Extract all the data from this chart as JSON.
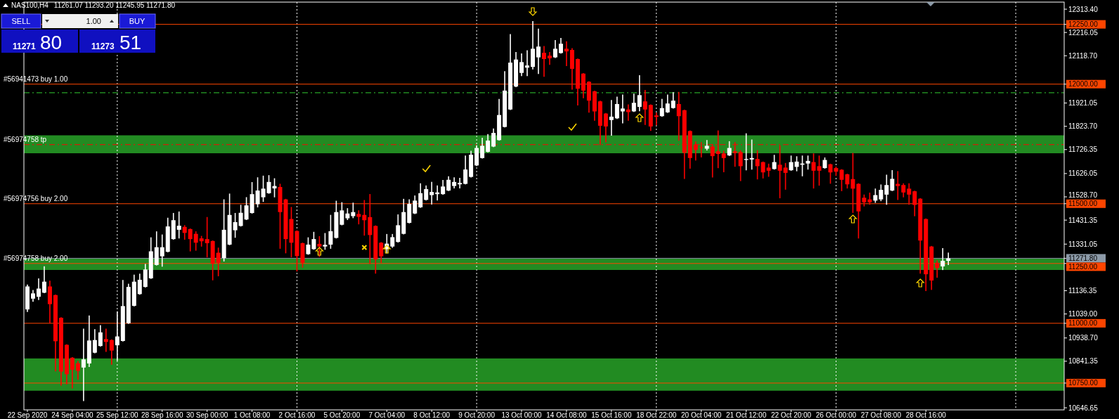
{
  "chart_data": {
    "type": "candlestick",
    "title": "NAS100,H4",
    "annotations": [
      "SELL",
      "1.00",
      "BUY",
      "11271",
      "80",
      "11273",
      "51",
      "11261.07 11293.20 11245.95 11271.80"
    ],
    "categories": [
      "22 Sep 2020",
      null,
      null,
      null,
      null,
      null,
      null,
      null,
      "24 Sep 04:00",
      null,
      null,
      null,
      null,
      null,
      null,
      null,
      "25 Sep 12:00",
      null,
      null,
      null,
      null,
      null,
      null,
      null,
      "28 Sep 16:00",
      null,
      null,
      null,
      null,
      null,
      null,
      null,
      "30 Sep 00:00",
      null,
      null,
      null,
      null,
      null,
      null,
      null,
      "1 Oct 08:00",
      null,
      null,
      null,
      null,
      null,
      null,
      null,
      "2 Oct 16:00",
      null,
      null,
      null,
      null,
      null,
      null,
      null,
      "5 Oct 20:00",
      null,
      null,
      null,
      null,
      null,
      null,
      null,
      "7 Oct 04:00",
      null,
      null,
      null,
      null,
      null,
      null,
      null,
      "8 Oct 12:00",
      null,
      null,
      null,
      null,
      null,
      null,
      null,
      "9 Oct 20:00",
      null,
      null,
      null,
      null,
      null,
      null,
      null,
      "13 Oct 00:00",
      null,
      null,
      null,
      null,
      null,
      null,
      null,
      "14 Oct 08:00",
      null,
      null,
      null,
      null,
      null,
      null,
      null,
      "15 Oct 16:00",
      null,
      null,
      null,
      null,
      null,
      null,
      null,
      "18 Oct 22:00",
      null,
      null,
      null,
      null,
      null,
      null,
      null,
      "20 Oct 04:00",
      null,
      null,
      null,
      null,
      null,
      null,
      null,
      "21 Oct 12:00",
      null,
      null,
      null,
      null,
      null,
      null,
      null,
      "22 Oct 20:00",
      null,
      null,
      null,
      null,
      null,
      null,
      null,
      "26 Oct 00:00",
      null,
      null,
      null,
      null,
      null,
      null,
      null,
      "27 Oct 08:00",
      null,
      null,
      null,
      null,
      null,
      null,
      null,
      "28 Oct 16:00",
      null,
      null,
      null,
      null,
      null,
      null,
      null,
      null,
      null,
      null,
      null,
      null,
      null,
      null,
      null,
      null,
      null,
      null,
      null,
      null,
      null,
      null,
      null,
      null
    ],
    "ohlc": [
      [
        11058,
        11160,
        11050,
        11154
      ],
      [
        11103,
        11137,
        11092,
        11125
      ],
      [
        11111,
        11185,
        11100,
        11145
      ],
      [
        11128,
        11236,
        11128,
        11174
      ],
      [
        11154,
        11176,
        11001,
        11080
      ],
      [
        11118,
        11118,
        10801,
        10925
      ],
      [
        11023,
        11023,
        10742,
        10798
      ],
      [
        10910,
        10910,
        10747,
        10787
      ],
      [
        10856,
        10856,
        10730,
        10806
      ],
      [
        10833,
        10840,
        10767,
        10801
      ],
      [
        10815,
        10975,
        10677,
        10849
      ],
      [
        10832,
        11030,
        10820,
        10928
      ],
      [
        10877,
        10973,
        10877,
        10930
      ],
      [
        10905,
        10990,
        10905,
        10962
      ],
      [
        10934,
        10975,
        10883,
        10922
      ],
      [
        10930,
        10930,
        10829,
        10886
      ],
      [
        10908,
        11047,
        10846,
        10945
      ],
      [
        10926,
        11179,
        10926,
        11072
      ],
      [
        11000,
        11163,
        11000,
        11152
      ],
      [
        11073,
        11201,
        11073,
        11174
      ],
      [
        11122,
        11205,
        11122,
        11182
      ],
      [
        11152,
        11246,
        11152,
        11225
      ],
      [
        11188,
        11357,
        11188,
        11301
      ],
      [
        11244,
        11382,
        11244,
        11318
      ],
      [
        11280,
        11369,
        11239,
        11318
      ],
      [
        11299,
        11439,
        11299,
        11405
      ],
      [
        11352,
        11459,
        11352,
        11431
      ],
      [
        11391,
        11465,
        11357,
        11408
      ],
      [
        11403,
        11408,
        11352,
        11378
      ],
      [
        11394,
        11394,
        11303,
        11352
      ],
      [
        11374,
        11382,
        11306,
        11337
      ],
      [
        11355,
        11363,
        11323,
        11343
      ],
      [
        11352,
        11442,
        11278,
        11335
      ],
      [
        11344,
        11344,
        11182,
        11250
      ],
      [
        11295,
        11314,
        11199,
        11253
      ],
      [
        11273,
        11516,
        11261,
        11391
      ],
      [
        11329,
        11540,
        11329,
        11453
      ],
      [
        11389,
        11459,
        11360,
        11423
      ],
      [
        11407,
        11493,
        11407,
        11462
      ],
      [
        11434,
        11525,
        11434,
        11493
      ],
      [
        11461,
        11588,
        11461,
        11540
      ],
      [
        11498,
        11608,
        11487,
        11555
      ],
      [
        11527,
        11615,
        11510,
        11563
      ],
      [
        11544,
        11617,
        11544,
        11591
      ],
      [
        11564,
        11604,
        11529,
        11574
      ],
      [
        11570,
        11581,
        11314,
        11465
      ],
      [
        11518,
        11518,
        11295,
        11352
      ],
      [
        11436,
        11484,
        11278,
        11337
      ],
      [
        11386,
        11386,
        11219,
        11281
      ],
      [
        11335,
        11335,
        11235,
        11253
      ],
      [
        11289,
        11357,
        11289,
        11329
      ],
      [
        11310,
        11380,
        11310,
        11352
      ],
      [
        11332,
        11362,
        11280,
        11321
      ],
      [
        11321,
        11375,
        11310,
        11328
      ],
      [
        11329,
        11451,
        11314,
        11385
      ],
      [
        11357,
        11510,
        11357,
        11465
      ],
      [
        11412,
        11504,
        11412,
        11472
      ],
      [
        11439,
        11479,
        11434,
        11459
      ],
      [
        11448,
        11502,
        11442,
        11465
      ],
      [
        11457,
        11470,
        11416,
        11445
      ],
      [
        11453,
        11513,
        11369,
        11431
      ],
      [
        11444,
        11538,
        11250,
        11369
      ],
      [
        11407,
        11407,
        11210,
        11267
      ],
      [
        11337,
        11337,
        11255,
        11280
      ],
      [
        11310,
        11371,
        11295,
        11333
      ],
      [
        11321,
        11371,
        11318,
        11360
      ],
      [
        11340,
        11453,
        11340,
        11410
      ],
      [
        11374,
        11518,
        11374,
        11465
      ],
      [
        11420,
        11516,
        11420,
        11499
      ],
      [
        11459,
        11532,
        11459,
        11513
      ],
      [
        11485,
        11583,
        11485,
        11544
      ],
      [
        11516,
        11574,
        11516,
        11561
      ],
      [
        11536,
        11589,
        11499,
        11549
      ],
      [
        11540,
        11574,
        11516,
        11547
      ],
      [
        11540,
        11597,
        11540,
        11572
      ],
      [
        11555,
        11612,
        11555,
        11600
      ],
      [
        11574,
        11608,
        11566,
        11591
      ],
      [
        11581,
        11606,
        11566,
        11587
      ],
      [
        11583,
        11699,
        11583,
        11643
      ],
      [
        11612,
        11719,
        11612,
        11705
      ],
      [
        11660,
        11742,
        11660,
        11733
      ],
      [
        11691,
        11773,
        11691,
        11742
      ],
      [
        11717,
        11789,
        11717,
        11764
      ],
      [
        11739,
        11812,
        11739,
        11796
      ],
      [
        11766,
        11936,
        11766,
        11871
      ],
      [
        11821,
        12052,
        11821,
        11973
      ],
      [
        11894,
        12207,
        11894,
        12090
      ],
      [
        11990,
        12132,
        11990,
        12103
      ],
      [
        12047,
        12126,
        12036,
        12092
      ],
      [
        12069,
        12139,
        12036,
        12078
      ],
      [
        12072,
        12261,
        12064,
        12148
      ],
      [
        12112,
        12230,
        12045,
        12157
      ],
      [
        12131,
        12157,
        12033,
        12105
      ],
      [
        12119,
        12132,
        12083,
        12108
      ],
      [
        12112,
        12182,
        12112,
        12148
      ],
      [
        12130,
        12191,
        12130,
        12169
      ],
      [
        12148,
        12177,
        12078,
        12137
      ],
      [
        12143,
        12148,
        11979,
        12064
      ],
      [
        12105,
        12105,
        11913,
        11981
      ],
      [
        12044,
        12044,
        11943,
        11973
      ],
      [
        12010,
        12010,
        11883,
        11931
      ],
      [
        11970,
        11970,
        11849,
        11886
      ],
      [
        11928,
        11928,
        11747,
        11826
      ],
      [
        11877,
        11877,
        11759,
        11823
      ],
      [
        11850,
        11931,
        11787,
        11864
      ],
      [
        11857,
        11945,
        11857,
        11917
      ],
      [
        11886,
        11954,
        11838,
        11898
      ],
      [
        11894,
        11913,
        11849,
        11883
      ],
      [
        11886,
        11958,
        11886,
        11922
      ],
      [
        11905,
        12035,
        11889,
        11954
      ],
      [
        11928,
        11973,
        11832,
        11894
      ],
      [
        11913,
        11913,
        11807,
        11823
      ],
      [
        11869,
        11879,
        11830,
        11863
      ],
      [
        11866,
        11936,
        11866,
        11900
      ],
      [
        11882,
        11954,
        11882,
        11919
      ],
      [
        11900,
        11964,
        11900,
        11931
      ],
      [
        11917,
        11965,
        11766,
        11866
      ],
      [
        11891,
        11891,
        11606,
        11713
      ],
      [
        11804,
        11804,
        11649,
        11691
      ],
      [
        11747,
        11758,
        11683,
        11725
      ],
      [
        11736,
        11755,
        11696,
        11733
      ],
      [
        11730,
        11764,
        11725,
        11742
      ],
      [
        11739,
        11747,
        11612,
        11699
      ],
      [
        11719,
        11804,
        11651,
        11708
      ],
      [
        11710,
        11719,
        11634,
        11691
      ],
      [
        11702,
        11759,
        11702,
        11733
      ],
      [
        11719,
        11755,
        11657,
        11712
      ],
      [
        11716,
        11721,
        11597,
        11657
      ],
      [
        11683,
        11792,
        11642,
        11687
      ],
      [
        11685,
        11766,
        11645,
        11691
      ],
      [
        11687,
        11721,
        11604,
        11657
      ],
      [
        11674,
        11674,
        11608,
        11631
      ],
      [
        11651,
        11665,
        11615,
        11638
      ],
      [
        11645,
        11702,
        11645,
        11674
      ],
      [
        11663,
        11741,
        11525,
        11638
      ],
      [
        11651,
        11668,
        11561,
        11629
      ],
      [
        11640,
        11699,
        11640,
        11674
      ],
      [
        11654,
        11696,
        11638,
        11676
      ],
      [
        11663,
        11699,
        11617,
        11668
      ],
      [
        11668,
        11699,
        11645,
        11679
      ],
      [
        11674,
        11708,
        11566,
        11638
      ],
      [
        11657,
        11699,
        11578,
        11638
      ],
      [
        11649,
        11691,
        11649,
        11683
      ],
      [
        11665,
        11665,
        11586,
        11631
      ],
      [
        11649,
        11653,
        11619,
        11634
      ],
      [
        11642,
        11642,
        11555,
        11600
      ],
      [
        11623,
        11623,
        11566,
        11581
      ],
      [
        11603,
        11710,
        11464,
        11563
      ],
      [
        11583,
        11583,
        11357,
        11468
      ],
      [
        11525,
        11536,
        11491,
        11506
      ],
      [
        11518,
        11544,
        11498,
        11506
      ],
      [
        11513,
        11561,
        11506,
        11536
      ],
      [
        11518,
        11578,
        11513,
        11558
      ],
      [
        11538,
        11619,
        11498,
        11578
      ],
      [
        11555,
        11638,
        11555,
        11604
      ],
      [
        11583,
        11634,
        11518,
        11574
      ],
      [
        11578,
        11583,
        11529,
        11547
      ],
      [
        11563,
        11583,
        11498,
        11538
      ],
      [
        11552,
        11552,
        11450,
        11495
      ],
      [
        11521,
        11521,
        11210,
        11346
      ],
      [
        11436,
        11436,
        11137,
        11205
      ],
      [
        11321,
        11321,
        11142,
        11179
      ],
      [
        11253,
        11261,
        11193,
        11231
      ],
      [
        11238,
        11312,
        11225,
        11261
      ],
      [
        11261.07,
        11293.2,
        11245.95,
        11271.8
      ],
      null,
      null,
      null,
      null,
      null,
      null,
      null,
      null,
      null,
      null,
      null,
      null,
      null,
      null,
      null,
      null,
      null,
      null,
      null,
      null
    ],
    "ylim": [
      10638,
      12343
    ],
    "yticks": [
      {
        "value": 12313.4,
        "label": "12313.40"
      },
      {
        "value": 12250,
        "label": "12250.00"
      },
      {
        "value": 12216.05,
        "label": "12216.05"
      },
      {
        "value": 12000,
        "label": "12000.00"
      },
      {
        "value": 11500,
        "label": "11500.00"
      },
      {
        "value": 11271.8,
        "label": "11271.80"
      },
      {
        "value": 11250,
        "label": "11250.00"
      },
      {
        "value": 11000,
        "label": "11000.00"
      },
      {
        "value": 10750,
        "label": "10750.00"
      },
      {
        "value": 12118.7,
        "label": "12118.70"
      },
      {
        "value": 11921.05,
        "label": "11921.05"
      },
      {
        "value": 11823.7,
        "label": "11823.70"
      },
      {
        "value": 11726.35,
        "label": "11726.35"
      },
      {
        "value": 11626.05,
        "label": "11626.05"
      },
      {
        "value": 11528.7,
        "label": "11528.70"
      },
      {
        "value": 11431.35,
        "label": "11431.35"
      },
      {
        "value": 11331.05,
        "label": "11331.05"
      },
      {
        "value": 11136.35,
        "label": "11136.35"
      },
      {
        "value": 11039,
        "label": "11039.00"
      },
      {
        "value": 10938.7,
        "label": "10938.70"
      },
      {
        "value": 10841.35,
        "label": "10841.35"
      },
      {
        "value": 10646.65,
        "label": "10646.65"
      }
    ],
    "grid": "x",
    "bands": [
      {
        "axis": "y",
        "from": 11223,
        "to": 11270,
        "color": "#228b22"
      },
      {
        "axis": "y",
        "from": 10718,
        "to": 10853,
        "color": "#228b22"
      },
      {
        "axis": "y",
        "from": 11711,
        "to": 11786,
        "color": "#228b22"
      }
    ],
    "ref_lines": [
      {
        "axis": "y",
        "value": 12250,
        "color": "#ff4500"
      },
      {
        "axis": "y",
        "value": 12000,
        "label": "#56941473 buy 1.00",
        "color": "#ff4500"
      },
      {
        "axis": "y",
        "value": 11964,
        "color": "#32cd32",
        "line_style": "dashed"
      },
      {
        "axis": "y",
        "value": 11747,
        "label": "#56974758 tp",
        "color": "#ff0000",
        "line_style": "dashed"
      },
      {
        "axis": "y",
        "value": 11500,
        "label": "#56974756 buy 2.00",
        "color": "#ff4500"
      },
      {
        "axis": "y",
        "value": 11271.8,
        "color": "#8c9aa8"
      },
      {
        "axis": "y",
        "value": 11250,
        "label": "#56974758 buy 2.00",
        "color": "#ff4500"
      },
      {
        "axis": "y",
        "value": 11000,
        "color": "#ff4500"
      },
      {
        "axis": "y",
        "value": 10750,
        "color": "#ff4500"
      }
    ]
  }
}
